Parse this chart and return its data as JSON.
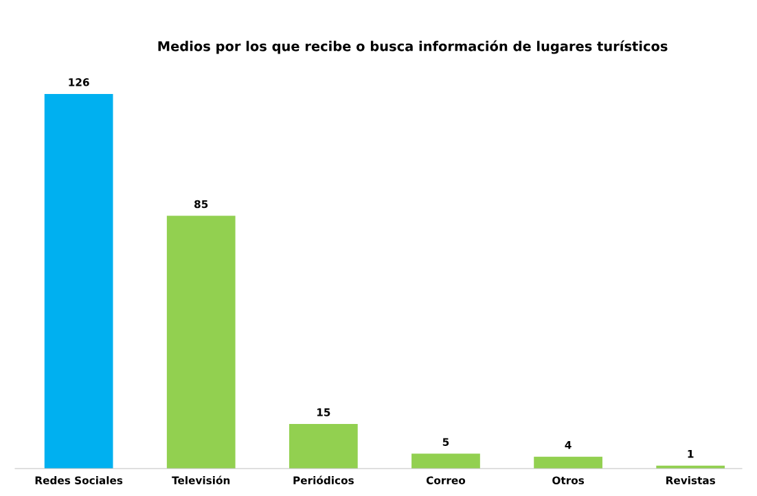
{
  "chart_data": {
    "type": "bar",
    "title": "Medios por los que recibe o busca información de lugares turísticos",
    "categories": [
      "Redes Sociales",
      "Televisión",
      "Periódicos",
      "Correo",
      "Otros",
      "Revistas"
    ],
    "values": [
      126,
      85,
      15,
      5,
      4,
      1
    ],
    "colors": [
      "#00b0f0",
      "#92d050",
      "#92d050",
      "#92d050",
      "#92d050",
      "#92d050"
    ],
    "data_labels": true,
    "grid": false,
    "legend": false
  }
}
